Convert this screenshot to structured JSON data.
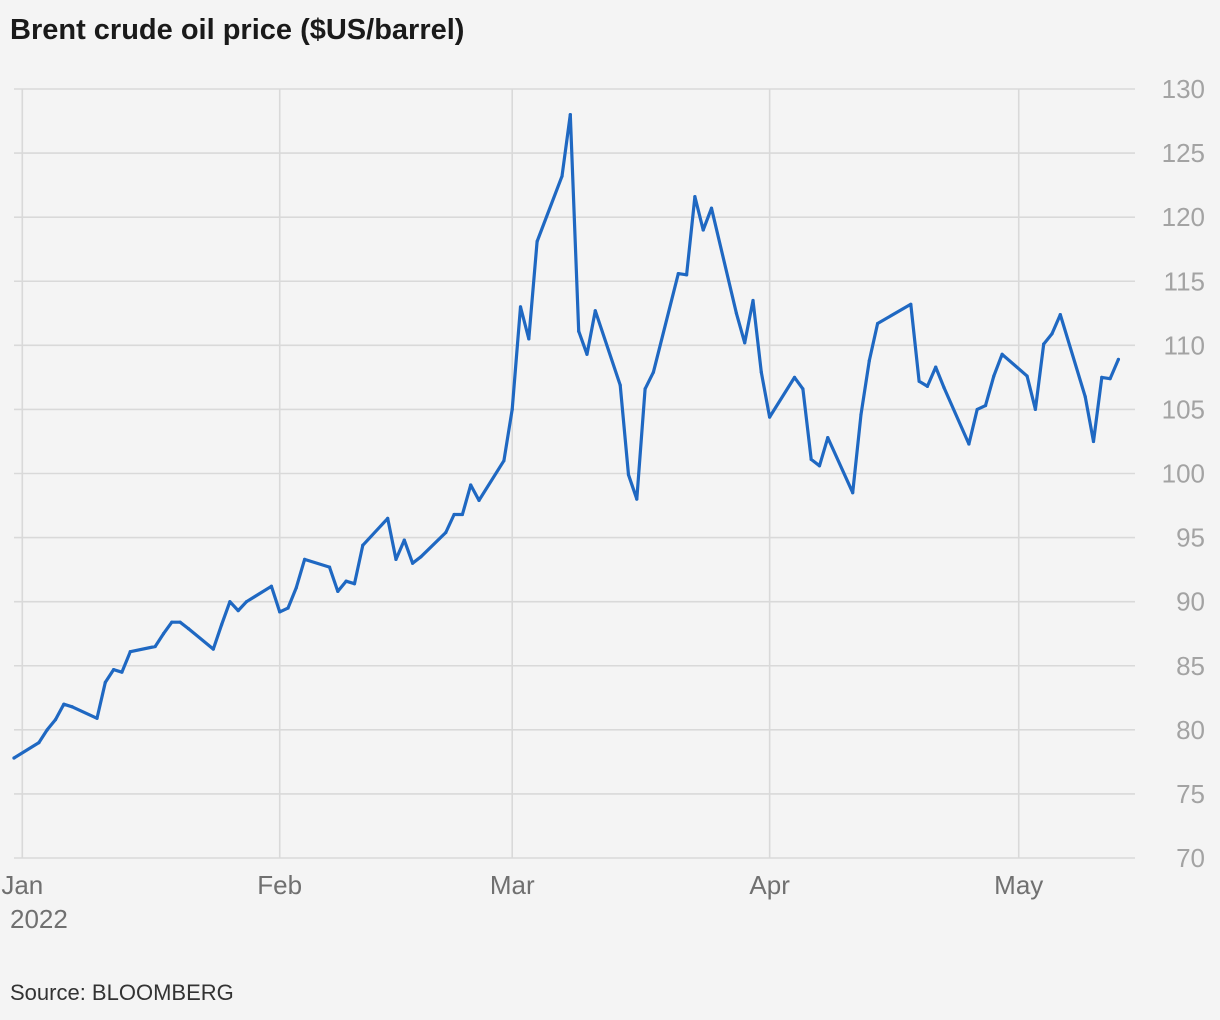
{
  "title": "Brent crude oil price ($US/barrel)",
  "source": "Source: BLOOMBERG",
  "colors": {
    "line": "#1f68c2",
    "grid": "#d9d9d9",
    "y_tick": "#a3a3a3",
    "x_tick": "#707070",
    "background": "#f4f4f4"
  },
  "chart_data": {
    "type": "line",
    "title": "Brent crude oil price ($US/barrel)",
    "xlabel": "",
    "ylabel": "",
    "ylim": [
      70,
      130
    ],
    "yticks": [
      70,
      75,
      80,
      85,
      90,
      95,
      100,
      105,
      110,
      115,
      120,
      125,
      130
    ],
    "y_axis_side": "right",
    "grid": true,
    "xlim": [
      "2021-12-31",
      "2022-05-15"
    ],
    "xticks": [
      {
        "date": "2022-01-01",
        "label": "Jan",
        "sublabel": "2022"
      },
      {
        "date": "2022-02-01",
        "label": "Feb"
      },
      {
        "date": "2022-03-01",
        "label": "Mar"
      },
      {
        "date": "2022-04-01",
        "label": "Apr"
      },
      {
        "date": "2022-05-01",
        "label": "May"
      }
    ],
    "series": [
      {
        "x": [
          "2021-12-31",
          "2022-01-03",
          "2022-01-04",
          "2022-01-05",
          "2022-01-06",
          "2022-01-07",
          "2022-01-10",
          "2022-01-11",
          "2022-01-12",
          "2022-01-13",
          "2022-01-14",
          "2022-01-17",
          "2022-01-18",
          "2022-01-19",
          "2022-01-20",
          "2022-01-21",
          "2022-01-24",
          "2022-01-25",
          "2022-01-26",
          "2022-01-27",
          "2022-01-28",
          "2022-01-31",
          "2022-02-01",
          "2022-02-02",
          "2022-02-03",
          "2022-02-04",
          "2022-02-07",
          "2022-02-08",
          "2022-02-09",
          "2022-02-10",
          "2022-02-11",
          "2022-02-14",
          "2022-02-15",
          "2022-02-16",
          "2022-02-17",
          "2022-02-18",
          "2022-02-21",
          "2022-02-22",
          "2022-02-23",
          "2022-02-24",
          "2022-02-25",
          "2022-02-28",
          "2022-03-01",
          "2022-03-02",
          "2022-03-03",
          "2022-03-04",
          "2022-03-07",
          "2022-03-08",
          "2022-03-09",
          "2022-03-10",
          "2022-03-11",
          "2022-03-14",
          "2022-03-15",
          "2022-03-16",
          "2022-03-17",
          "2022-03-18",
          "2022-03-21",
          "2022-03-22",
          "2022-03-23",
          "2022-03-24",
          "2022-03-25",
          "2022-03-28",
          "2022-03-29",
          "2022-03-30",
          "2022-03-31",
          "2022-04-01",
          "2022-04-04",
          "2022-04-05",
          "2022-04-06",
          "2022-04-07",
          "2022-04-08",
          "2022-04-11",
          "2022-04-12",
          "2022-04-13",
          "2022-04-14",
          "2022-04-18",
          "2022-04-19",
          "2022-04-20",
          "2022-04-21",
          "2022-04-22",
          "2022-04-25",
          "2022-04-26",
          "2022-04-27",
          "2022-04-28",
          "2022-04-29",
          "2022-05-02",
          "2022-05-03",
          "2022-05-04",
          "2022-05-05",
          "2022-05-06",
          "2022-05-09",
          "2022-05-10",
          "2022-05-11",
          "2022-05-12",
          "2022-05-13"
        ],
        "values": [
          77.8,
          79.0,
          80.0,
          80.8,
          82.0,
          81.8,
          80.9,
          83.7,
          84.7,
          84.5,
          86.1,
          86.5,
          87.5,
          88.4,
          88.4,
          87.9,
          86.3,
          88.2,
          90.0,
          89.3,
          90.0,
          91.2,
          89.2,
          89.5,
          91.1,
          93.3,
          92.7,
          90.8,
          91.6,
          91.4,
          94.4,
          96.5,
          93.3,
          94.8,
          93.0,
          93.5,
          95.4,
          96.8,
          96.8,
          99.1,
          97.9,
          101.0,
          105.0,
          113.0,
          110.5,
          118.1,
          123.2,
          128.0,
          111.1,
          109.3,
          112.7,
          106.9,
          99.9,
          98.0,
          106.6,
          107.9,
          115.6,
          115.5,
          121.6,
          119.0,
          120.7,
          112.5,
          110.2,
          113.5,
          107.9,
          104.4,
          107.5,
          106.6,
          101.1,
          100.6,
          102.8,
          98.5,
          104.6,
          108.8,
          111.7,
          113.2,
          107.2,
          106.8,
          108.3,
          106.7,
          102.3,
          105.0,
          105.3,
          107.6,
          109.3,
          107.6,
          105.0,
          110.1,
          110.9,
          112.4,
          106.0,
          102.5,
          107.5,
          107.4,
          108.9
        ]
      }
    ]
  }
}
